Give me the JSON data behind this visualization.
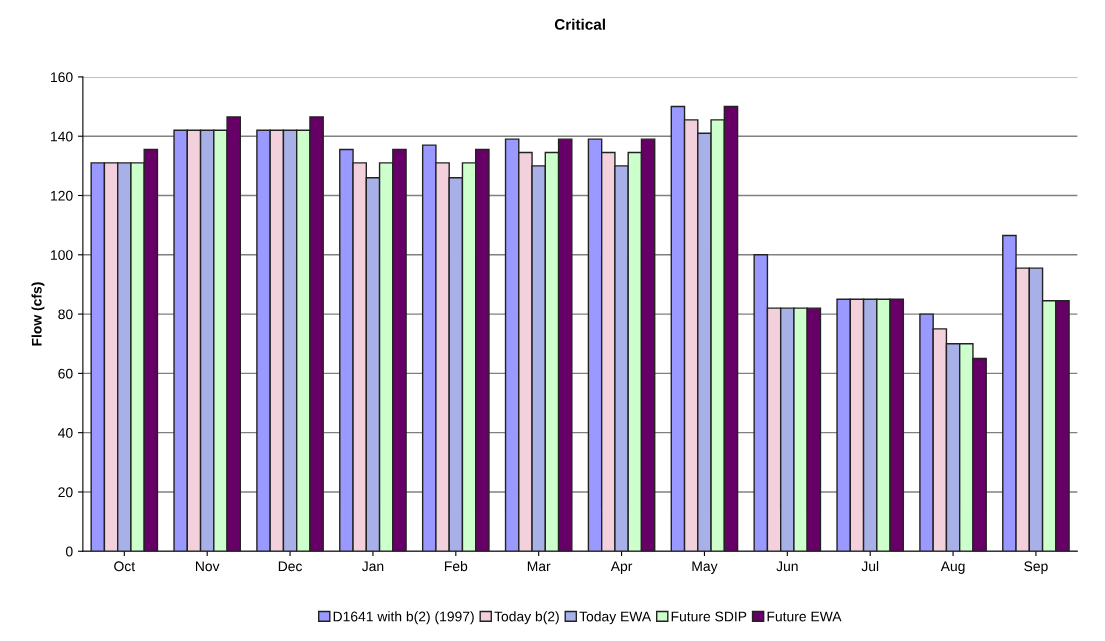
{
  "chart_data": {
    "type": "bar",
    "title": "Critical",
    "ylabel": "Flow (cfs)",
    "categories": [
      "Oct",
      "Nov",
      "Dec",
      "Jan",
      "Feb",
      "Mar",
      "Apr",
      "May",
      "Jun",
      "Jul",
      "Aug",
      "Sep"
    ],
    "series": [
      {
        "name": "D1641 with b(2) (1997)",
        "color": "#9999ff",
        "values": [
          131,
          142,
          142,
          135.5,
          137,
          139,
          139,
          150,
          100,
          85,
          80,
          106.5
        ]
      },
      {
        "name": "Today b(2)",
        "color": "#f2d0dc",
        "values": [
          131,
          142,
          142,
          131,
          131,
          134.5,
          134.5,
          145.5,
          82,
          85,
          75,
          95.5
        ]
      },
      {
        "name": "Today EWA",
        "color": "#a8b0e8",
        "values": [
          131,
          142,
          142,
          126,
          126,
          130,
          130,
          141,
          82,
          85,
          70,
          95.5
        ]
      },
      {
        "name": "Future SDIP",
        "color": "#ccffcc",
        "values": [
          131,
          142,
          142,
          131,
          131,
          134.5,
          134.5,
          145.5,
          82,
          85,
          70,
          84.5
        ]
      },
      {
        "name": "Future EWA",
        "color": "#660066",
        "values": [
          135.5,
          146.5,
          146.5,
          135.5,
          135.5,
          139,
          139,
          150,
          82,
          85,
          65,
          84.5
        ]
      }
    ],
    "ylim": [
      0,
      160
    ],
    "yticks": [
      0,
      20,
      40,
      60,
      80,
      100,
      120,
      140,
      160
    ],
    "grid": "y",
    "legend": "bottom"
  }
}
